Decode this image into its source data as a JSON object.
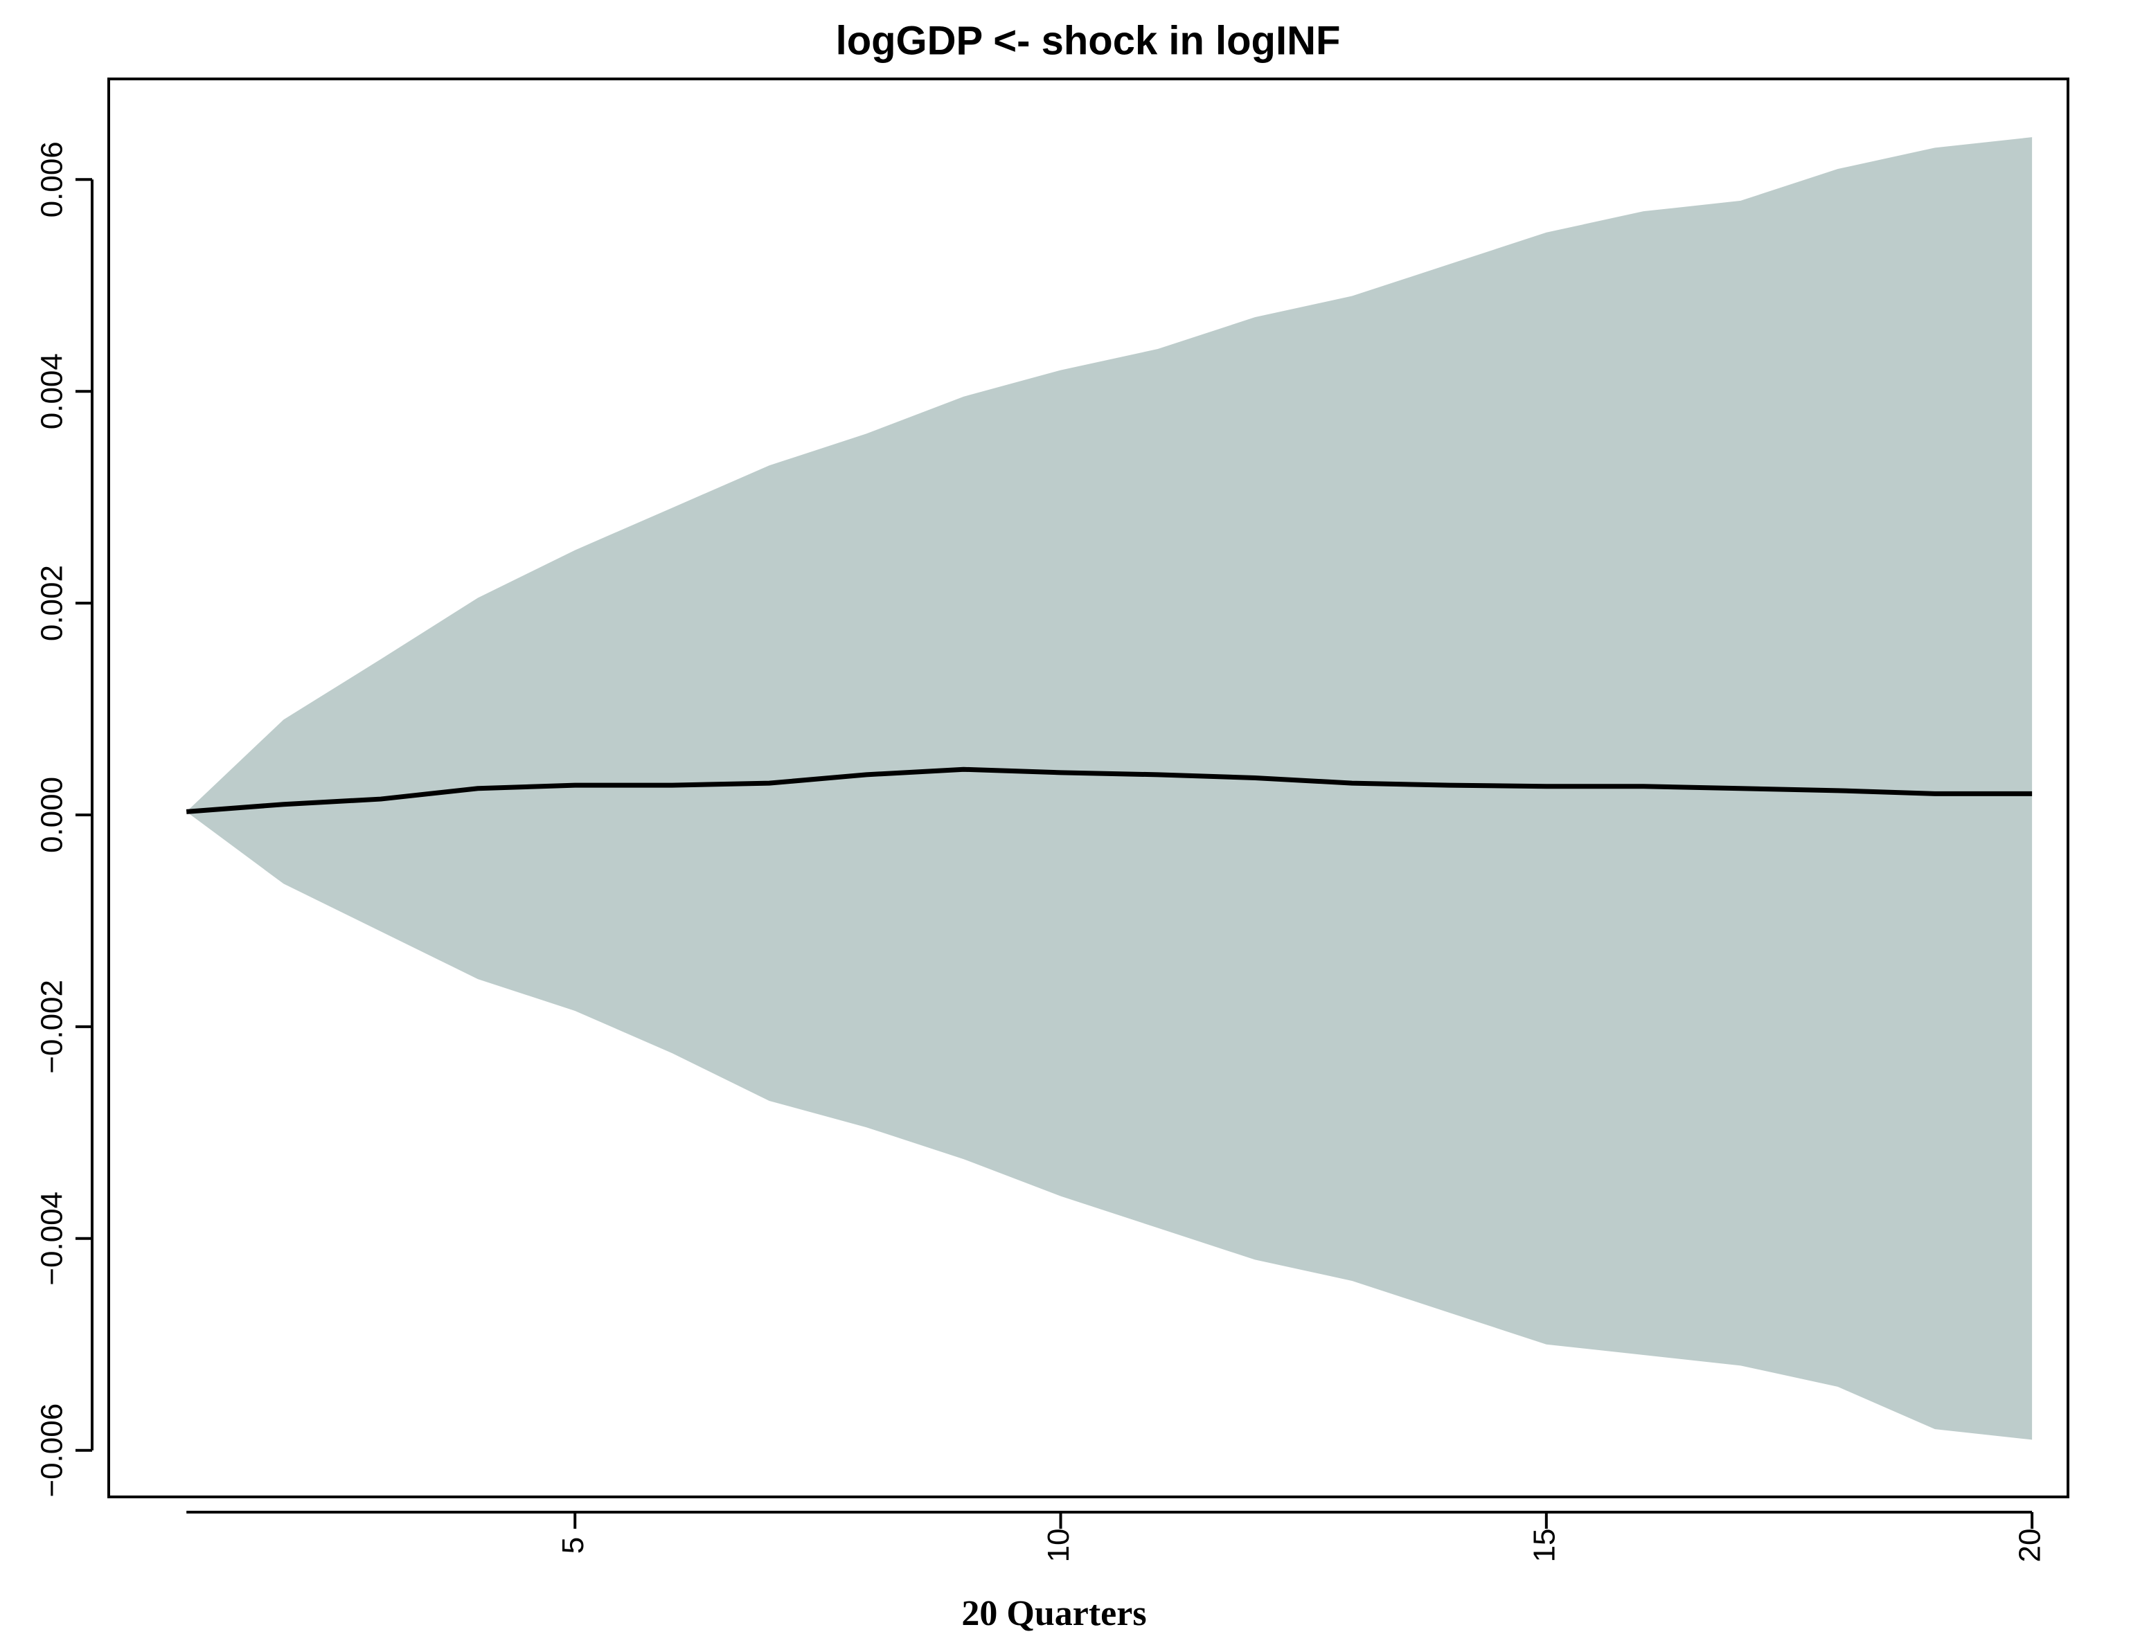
{
  "chart_data": {
    "type": "band-line",
    "title": "logGDP <- shock in logINF",
    "xlabel": "20 Quarters",
    "x": [
      1,
      2,
      3,
      4,
      5,
      6,
      7,
      8,
      9,
      10,
      11,
      12,
      13,
      14,
      15,
      16,
      17,
      18,
      19,
      20
    ],
    "values": [
      3e-05,
      0.0001,
      0.00015,
      0.00025,
      0.00028,
      0.00028,
      0.0003,
      0.00038,
      0.00043,
      0.0004,
      0.00038,
      0.00035,
      0.0003,
      0.00028,
      0.00027,
      0.00027,
      0.00025,
      0.00023,
      0.0002,
      0.0002
    ],
    "upper": [
      3e-05,
      0.0009,
      0.00147,
      0.00205,
      0.0025,
      0.0029,
      0.0033,
      0.0036,
      0.00395,
      0.0042,
      0.0044,
      0.0047,
      0.0049,
      0.0052,
      0.0055,
      0.0057,
      0.0058,
      0.0061,
      0.0063,
      0.0064
    ],
    "lower": [
      3e-05,
      -0.00065,
      -0.0011,
      -0.00155,
      -0.00185,
      -0.00225,
      -0.0027,
      -0.00295,
      -0.00325,
      -0.0036,
      -0.0039,
      -0.0042,
      -0.0044,
      -0.0047,
      -0.005,
      -0.0051,
      -0.0052,
      -0.0054,
      -0.0058,
      -0.0059
    ],
    "color": "#000000",
    "band_color": "#bdcccb",
    "xlim": [
      0.2,
      20.37
    ],
    "xticks": [
      5,
      10,
      15,
      20
    ],
    "ylim": [
      -0.00644,
      0.00695
    ],
    "yticks": [
      {
        "value": -0.006,
        "label": "−0.006"
      },
      {
        "value": -0.004,
        "label": "−0.004"
      },
      {
        "value": -0.002,
        "label": "−0.002"
      },
      {
        "value": 0,
        "label": "0.000"
      },
      0.002,
      0.004,
      0.006
    ]
  }
}
